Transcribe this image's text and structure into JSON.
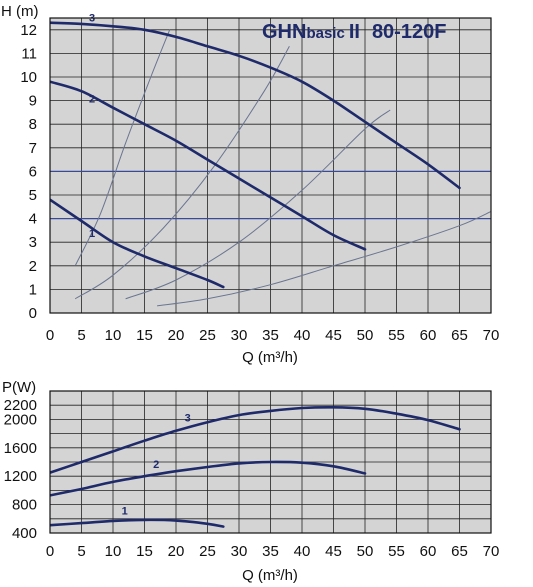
{
  "chart_data": [
    {
      "type": "line",
      "title": "GHNbasicII 80-120F",
      "title_parts": {
        "brand": "GHN",
        "sub": "basic",
        "roman": "II",
        "model": "80-120F"
      },
      "xlabel": "Q (m³/h)",
      "ylabel": "H (m)",
      "xlim": [
        0,
        70
      ],
      "ylim": [
        0,
        12.5
      ],
      "xticks": [
        "0",
        "5",
        "10",
        "15",
        "20",
        "25",
        "30",
        "35",
        "40",
        "45",
        "50",
        "55",
        "60",
        "65",
        "70"
      ],
      "yticks": [
        "0",
        "1",
        "2",
        "3",
        "4",
        "5",
        "6",
        "7",
        "8",
        "9",
        "10",
        "11",
        "12"
      ],
      "grid": true,
      "background": "#d4d4d4",
      "curve_color": "#1e2a6a",
      "system_curve_color": "#6a7590",
      "series": [
        {
          "name": "1",
          "x": [
            0,
            5,
            10,
            15,
            20,
            25,
            27.5
          ],
          "y": [
            4.8,
            3.9,
            3.0,
            2.4,
            1.9,
            1.4,
            1.1
          ]
        },
        {
          "name": "2",
          "x": [
            0,
            5,
            10,
            15,
            20,
            25,
            30,
            35,
            40,
            45,
            50
          ],
          "y": [
            9.8,
            9.4,
            8.7,
            8.0,
            7.3,
            6.5,
            5.7,
            4.9,
            4.1,
            3.3,
            2.7
          ]
        },
        {
          "name": "3",
          "x": [
            0,
            5,
            10,
            15,
            20,
            25,
            30,
            35,
            40,
            45,
            50,
            55,
            60,
            65
          ],
          "y": [
            12.3,
            12.25,
            12.15,
            12.0,
            11.7,
            11.3,
            10.9,
            10.4,
            9.8,
            9.0,
            8.1,
            7.2,
            6.3,
            5.3
          ]
        }
      ],
      "system_curves": [
        {
          "x": [
            4,
            8,
            12,
            16,
            19
          ],
          "y": [
            2.0,
            4.2,
            7.2,
            10.0,
            12.0
          ]
        },
        {
          "x": [
            4,
            10,
            18,
            26,
            34,
            38
          ],
          "y": [
            0.6,
            1.6,
            3.6,
            6.2,
            9.4,
            11.3
          ]
        },
        {
          "x": [
            12,
            20,
            30,
            40,
            50,
            54
          ],
          "y": [
            0.6,
            1.4,
            3.0,
            5.2,
            7.8,
            8.6
          ]
        },
        {
          "x": [
            17,
            25,
            35,
            45,
            55,
            65,
            70
          ],
          "y": [
            0.3,
            0.6,
            1.2,
            2.0,
            2.8,
            3.7,
            4.3
          ]
        }
      ],
      "horizontal_lines": [
        4,
        6
      ]
    },
    {
      "type": "line",
      "xlabel": "Q (m³/h)",
      "ylabel": "P(W)",
      "xlim": [
        0,
        70
      ],
      "ylim": [
        400,
        2400
      ],
      "xticks": [
        "0",
        "5",
        "10",
        "15",
        "20",
        "25",
        "30",
        "35",
        "40",
        "45",
        "50",
        "55",
        "60",
        "65",
        "70"
      ],
      "yticks": [
        "400",
        "800",
        "1200",
        "1600",
        "2000",
        "2200"
      ],
      "ytick_values": [
        400,
        800,
        1200,
        1600,
        2000,
        2200
      ],
      "grid": true,
      "background": "#d4d4d4",
      "curve_color": "#1e2a6a",
      "series": [
        {
          "name": "1",
          "x": [
            0,
            5,
            10,
            15,
            20,
            25,
            27.5
          ],
          "y": [
            510,
            540,
            570,
            585,
            575,
            530,
            490
          ]
        },
        {
          "name": "2",
          "x": [
            0,
            5,
            10,
            15,
            20,
            25,
            30,
            35,
            40,
            45,
            50
          ],
          "y": [
            930,
            1020,
            1120,
            1200,
            1270,
            1330,
            1380,
            1400,
            1390,
            1340,
            1240
          ]
        },
        {
          "name": "3",
          "x": [
            0,
            5,
            10,
            15,
            20,
            25,
            30,
            35,
            40,
            45,
            50,
            55,
            60,
            65
          ],
          "y": [
            1250,
            1400,
            1550,
            1700,
            1840,
            1960,
            2060,
            2120,
            2160,
            2170,
            2150,
            2080,
            1990,
            1860
          ]
        }
      ]
    }
  ]
}
